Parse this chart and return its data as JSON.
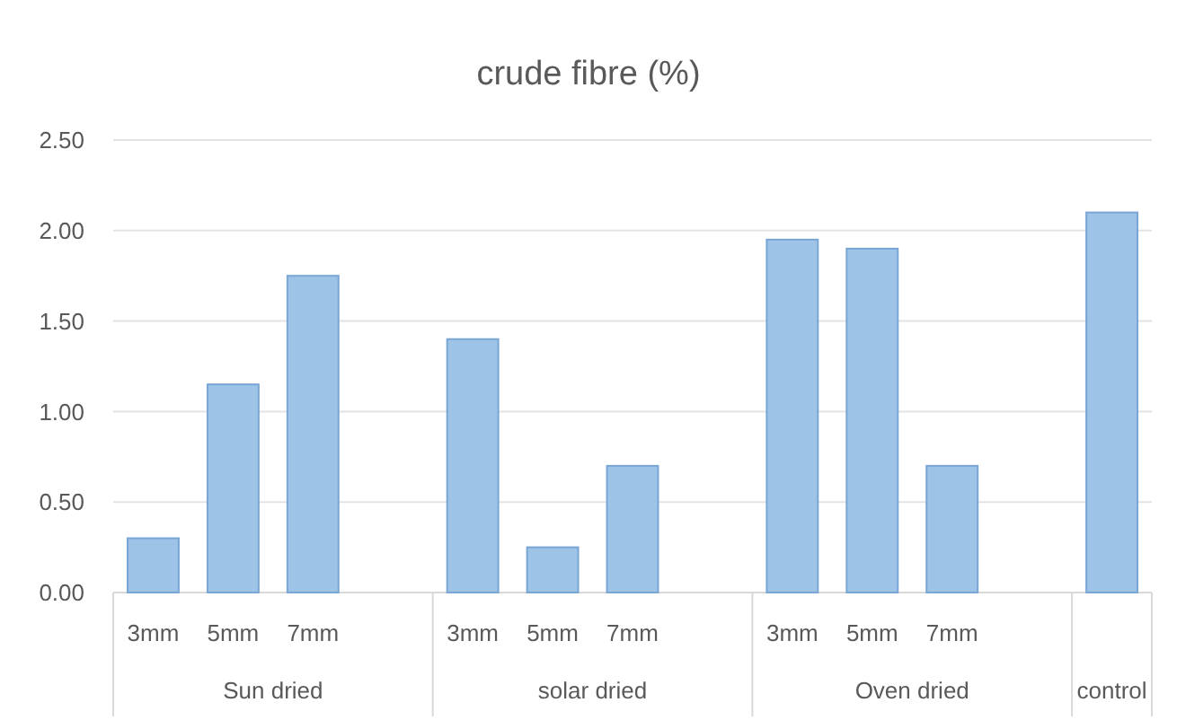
{
  "chart_data": {
    "type": "bar",
    "title": "crude fibre (%)",
    "categories": [
      "3mm",
      "5mm",
      "7mm",
      null,
      "3mm",
      "5mm",
      "7mm",
      null,
      "3mm",
      "5mm",
      "7mm",
      null,
      null
    ],
    "values": [
      0.3,
      1.15,
      1.75,
      null,
      1.4,
      0.25,
      0.7,
      null,
      1.95,
      1.9,
      0.7,
      null,
      2.1
    ],
    "color": "#9dc3e6",
    "annotations": [
      "Sun dried",
      "solar dried",
      "Oven dried",
      "control"
    ],
    "ylim": [
      0,
      2.5
    ],
    "yticks": [
      {
        "value": 0,
        "label": "0.00"
      },
      {
        "value": 0.5,
        "label": "0.50"
      },
      {
        "value": 1,
        "label": "1.00"
      },
      {
        "value": 1.5,
        "label": "1.50"
      },
      {
        "value": 2,
        "label": "2.00"
      },
      {
        "value": 2.5,
        "label": "2.50"
      }
    ],
    "grid": "y"
  }
}
